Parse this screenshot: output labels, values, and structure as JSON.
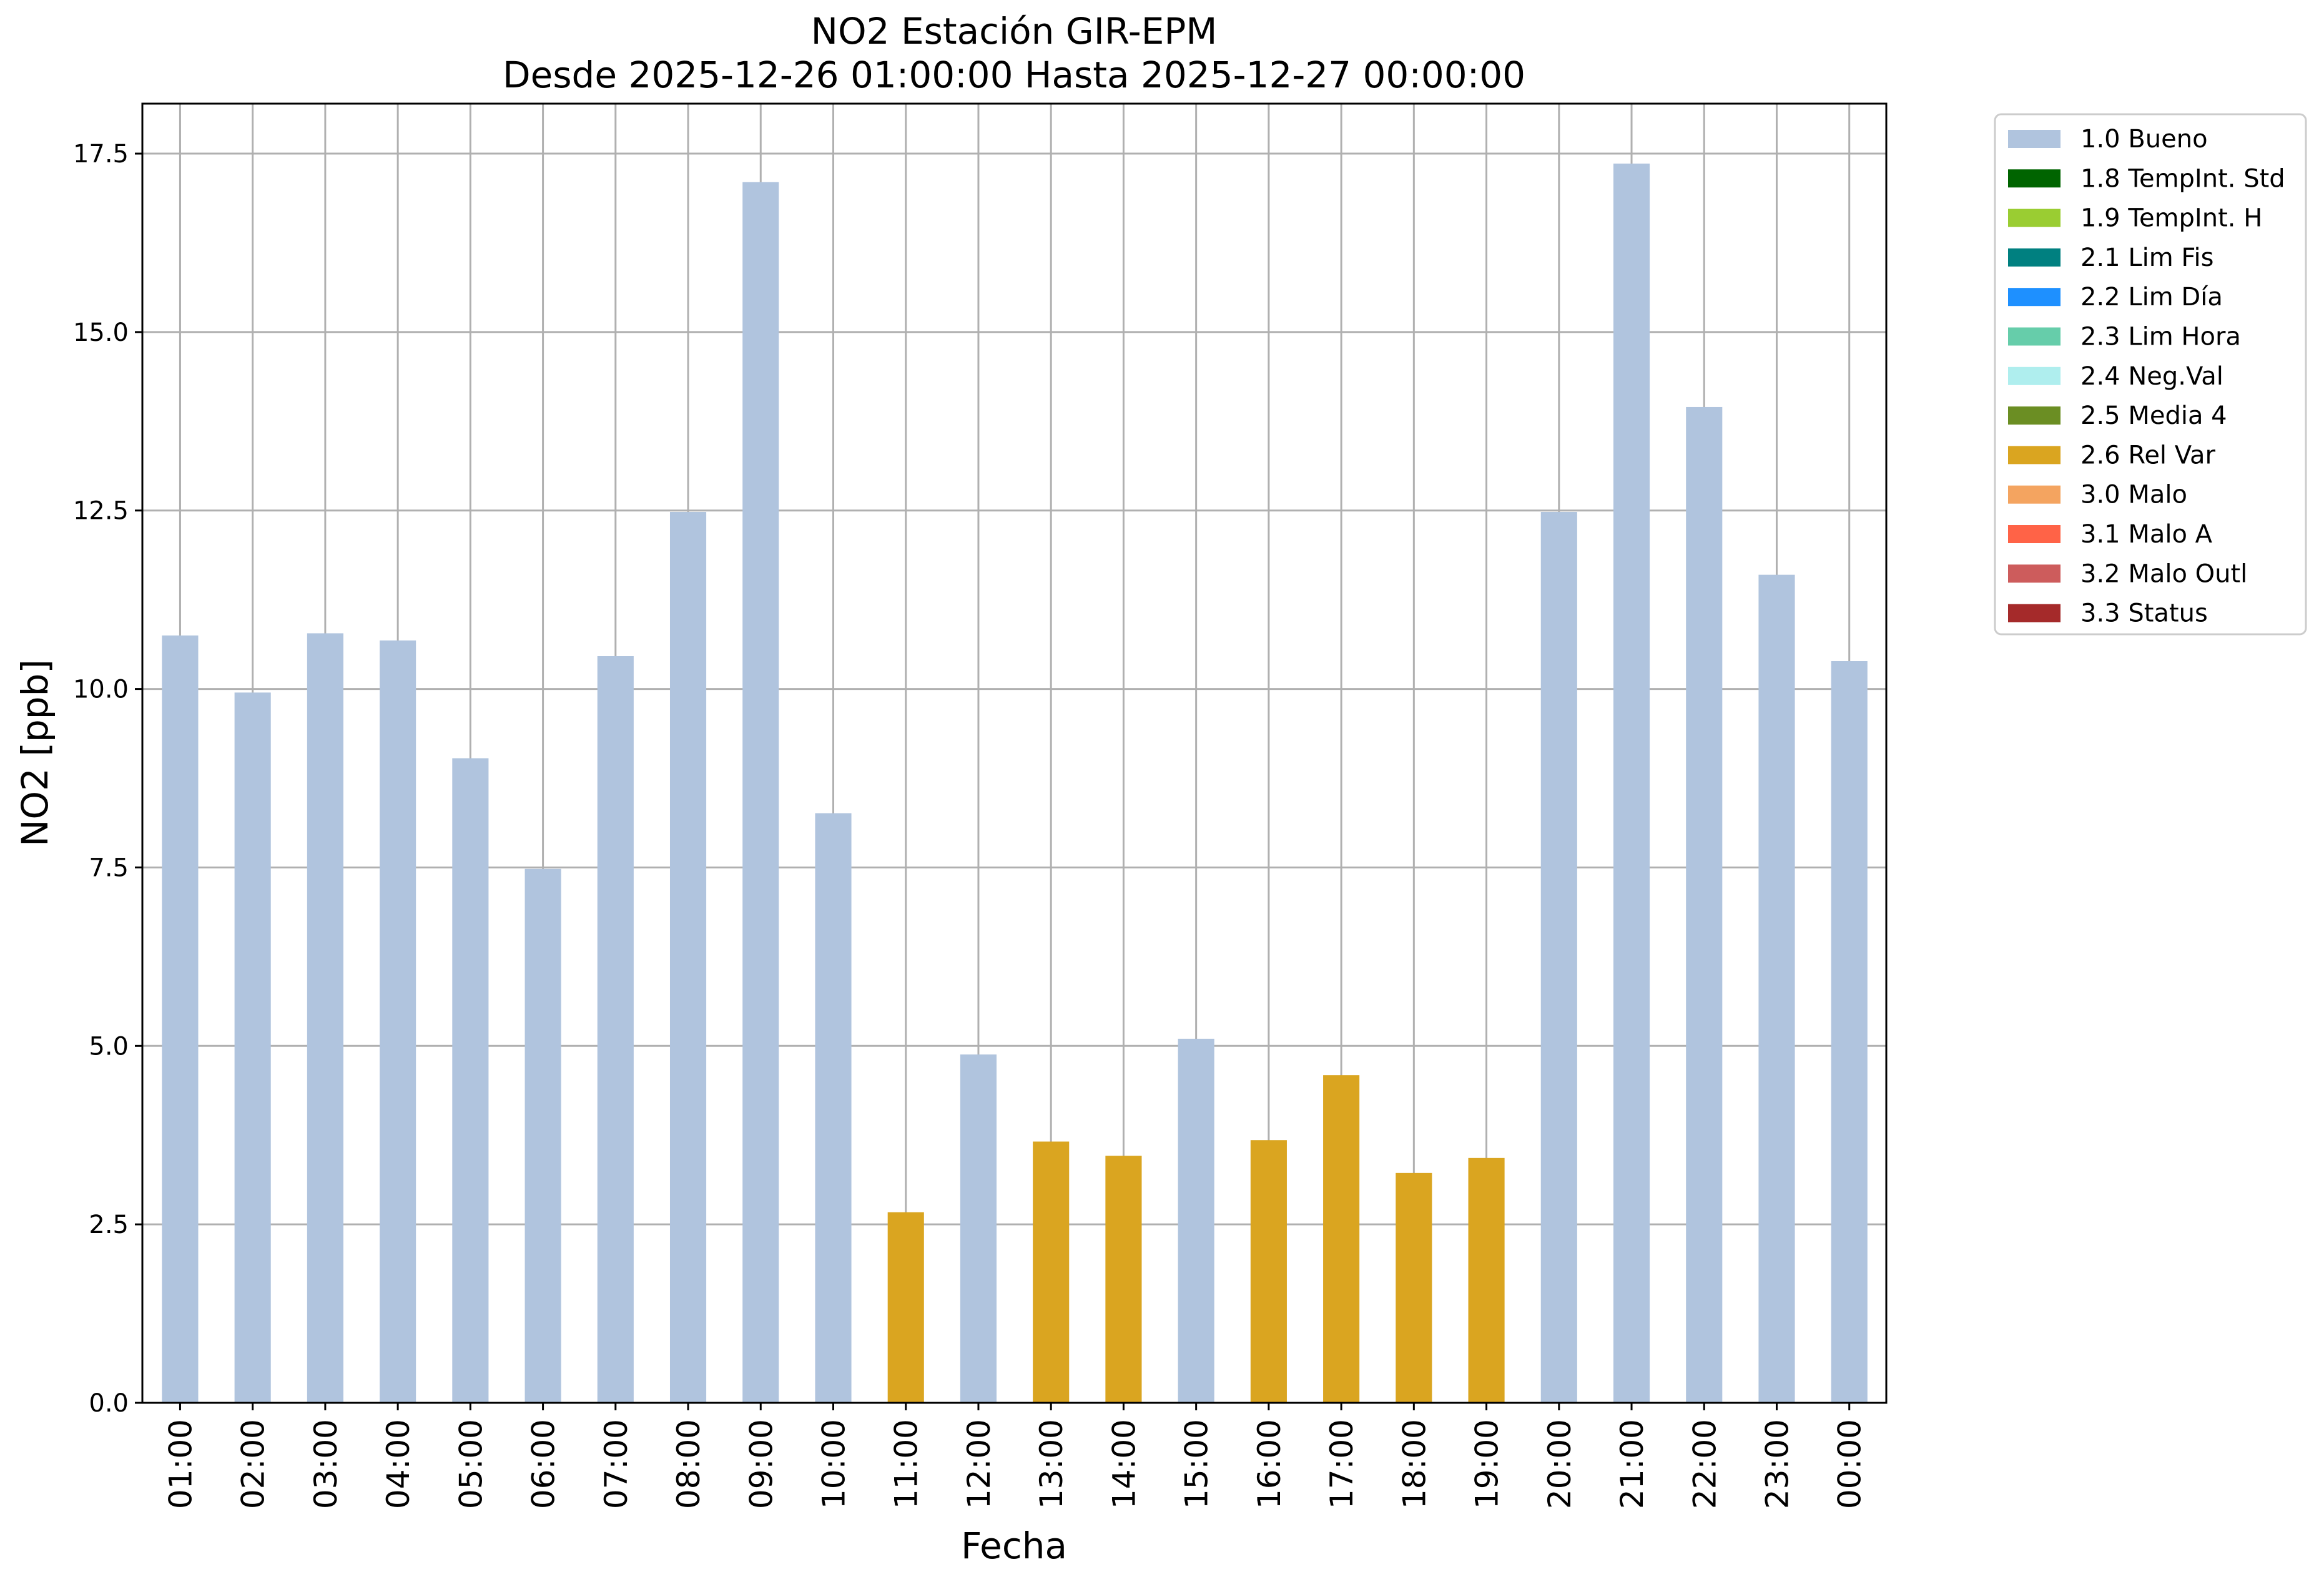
{
  "chart_data": {
    "type": "bar",
    "title": "NO2 Estación GIR-EPM",
    "subtitle": "Desde 2025-12-26 01:00:00 Hasta 2025-12-27 00:00:00",
    "xlabel": "Fecha",
    "ylabel": "NO2 [ppb]",
    "ylim": [
      0,
      18.2
    ],
    "yticks": [
      0.0,
      2.5,
      5.0,
      7.5,
      10.0,
      12.5,
      15.0,
      17.5
    ],
    "ytick_labels": [
      "0.0",
      "2.5",
      "5.0",
      "7.5",
      "10.0",
      "12.5",
      "15.0",
      "17.5"
    ],
    "grid": true,
    "legend_position": "outside-right-top",
    "categories": [
      "01:00",
      "02:00",
      "03:00",
      "04:00",
      "05:00",
      "06:00",
      "07:00",
      "08:00",
      "09:00",
      "10:00",
      "11:00",
      "12:00",
      "13:00",
      "14:00",
      "15:00",
      "16:00",
      "17:00",
      "18:00",
      "19:00",
      "20:00",
      "21:00",
      "22:00",
      "23:00",
      "00:00"
    ],
    "values": [
      10.75,
      9.95,
      10.78,
      10.68,
      9.03,
      7.48,
      10.46,
      12.48,
      17.1,
      8.26,
      2.67,
      4.88,
      3.66,
      3.46,
      5.1,
      3.68,
      4.59,
      3.22,
      3.43,
      12.48,
      17.36,
      13.95,
      11.6,
      10.39
    ],
    "flags": [
      "1.0",
      "1.0",
      "1.0",
      "1.0",
      "1.0",
      "1.0",
      "1.0",
      "1.0",
      "1.0",
      "1.0",
      "2.6",
      "1.0",
      "2.6",
      "2.6",
      "1.0",
      "2.6",
      "2.6",
      "2.6",
      "2.6",
      "1.0",
      "1.0",
      "1.0",
      "1.0",
      "1.0"
    ],
    "legend": [
      {
        "code": "1.0",
        "label": "1.0 Bueno",
        "color": "#b0c4de"
      },
      {
        "code": "1.8",
        "label": "1.8 TempInt. Std",
        "color": "#006400"
      },
      {
        "code": "1.9",
        "label": "1.9 TempInt. H",
        "color": "#9acd32"
      },
      {
        "code": "2.1",
        "label": "2.1 Lim Fis",
        "color": "#008080"
      },
      {
        "code": "2.2",
        "label": "2.2 Lim Día",
        "color": "#1e90ff"
      },
      {
        "code": "2.3",
        "label": "2.3 Lim Hora",
        "color": "#66cdaa"
      },
      {
        "code": "2.4",
        "label": "2.4 Neg.Val",
        "color": "#afeeee"
      },
      {
        "code": "2.5",
        "label": "2.5 Media 4",
        "color": "#6b8e23"
      },
      {
        "code": "2.6",
        "label": "2.6 Rel Var",
        "color": "#daa520"
      },
      {
        "code": "3.0",
        "label": "3.0 Malo",
        "color": "#f4a460"
      },
      {
        "code": "3.1",
        "label": "3.1 Malo A",
        "color": "#ff6347"
      },
      {
        "code": "3.2",
        "label": "3.2 Malo Outl",
        "color": "#cd5c5c"
      },
      {
        "code": "3.3",
        "label": "3.3 Status",
        "color": "#a52a2a"
      }
    ]
  }
}
